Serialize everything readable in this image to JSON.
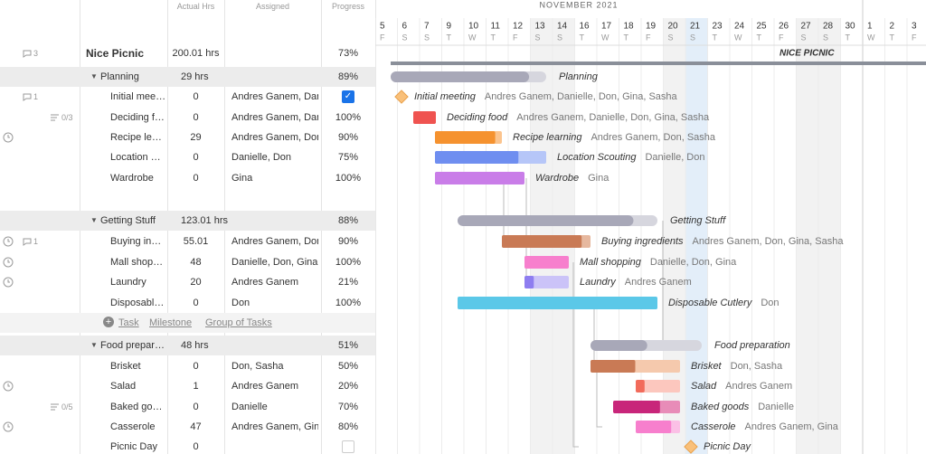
{
  "columns": {
    "actual_hrs": "Actual Hrs",
    "assigned": "Assigned",
    "progress": "Progress"
  },
  "timeline": {
    "month": "NOVEMBER 2021",
    "days": [
      {
        "day": "5",
        "weekday": "F"
      },
      {
        "day": "6",
        "weekday": "S"
      },
      {
        "day": "7",
        "weekday": "S"
      },
      {
        "day": "9",
        "weekday": "T"
      },
      {
        "day": "10",
        "weekday": "W"
      },
      {
        "day": "11",
        "weekday": "T"
      },
      {
        "day": "12",
        "weekday": "F"
      },
      {
        "day": "13",
        "weekday": "S"
      },
      {
        "day": "14",
        "weekday": "S"
      },
      {
        "day": "16",
        "weekday": "T"
      },
      {
        "day": "17",
        "weekday": "W"
      },
      {
        "day": "18",
        "weekday": "T"
      },
      {
        "day": "19",
        "weekday": "F"
      },
      {
        "day": "20",
        "weekday": "S"
      },
      {
        "day": "21",
        "weekday": "S"
      },
      {
        "day": "23",
        "weekday": "T"
      },
      {
        "day": "24",
        "weekday": "W"
      },
      {
        "day": "25",
        "weekday": "T"
      },
      {
        "day": "26",
        "weekday": "F"
      },
      {
        "day": "27",
        "weekday": "S"
      },
      {
        "day": "28",
        "weekday": "S"
      },
      {
        "day": "30",
        "weekday": "T"
      },
      {
        "day": "1",
        "weekday": "W"
      },
      {
        "day": "2",
        "weekday": "T"
      },
      {
        "day": "3",
        "weekday": "F"
      }
    ]
  },
  "project": {
    "name": "Nice Picnic",
    "hours": "200.01 hrs",
    "progress": "73%",
    "comments": "3",
    "bar_label": "NICE PICNIC"
  },
  "groups": [
    {
      "name": "Planning",
      "hours": "29 hrs",
      "progress": "89%",
      "tasks": [
        {
          "name": "Initial meeting",
          "hours": "0",
          "assigned": "Andres Ganem, Danielle, Don, Gina, Sasha",
          "done": true,
          "comments": "1"
        },
        {
          "name": "Deciding food",
          "hours": "0",
          "assigned": "Andres Ganem, Danielle, Don, Gina, Sasha",
          "progress": "100%",
          "checklist": "0/3"
        },
        {
          "name": "Recipe learning",
          "hours": "29",
          "assigned": "Andres Ganem, Don, Sasha",
          "progress": "90%",
          "timer": true
        },
        {
          "name": "Location Scouting",
          "hours": "0",
          "assigned": "Danielle, Don",
          "progress": "75%"
        },
        {
          "name": "Wardrobe",
          "hours": "0",
          "assigned": "Gina",
          "progress": "100%"
        }
      ]
    },
    {
      "name": "Getting Stuff",
      "hours": "123.01 hrs",
      "progress": "88%",
      "tasks": [
        {
          "name": "Buying ingredients",
          "hours": "55.01",
          "assigned": "Andres Ganem, Don, Gina, Sasha",
          "progress": "90%",
          "timer": true,
          "comments": "1"
        },
        {
          "name": "Mall shopping",
          "hours": "48",
          "assigned": "Danielle, Don, Gina",
          "progress": "100%",
          "timer": true
        },
        {
          "name": "Laundry",
          "hours": "20",
          "assigned": "Andres Ganem",
          "progress": "21%",
          "timer": true
        },
        {
          "name": "Disposable Cutlery",
          "hours": "0",
          "assigned": "Don",
          "progress": "100%"
        }
      ]
    },
    {
      "name": "Food preparation",
      "hours": "48 hrs",
      "progress": "51%",
      "tasks": [
        {
          "name": "Brisket",
          "hours": "0",
          "assigned": "Don, Sasha",
          "progress": "50%"
        },
        {
          "name": "Salad",
          "hours": "1",
          "assigned": "Andres Ganem",
          "progress": "20%",
          "timer": true
        },
        {
          "name": "Baked goods",
          "hours": "0",
          "assigned": "Danielle",
          "progress": "70%",
          "checklist": "0/5"
        },
        {
          "name": "Casserole",
          "hours": "47",
          "assigned": "Andres Ganem, Gina",
          "progress": "80%",
          "timer": true
        },
        {
          "name": "Picnic Day",
          "hours": "0",
          "done": false
        }
      ]
    }
  ],
  "add": {
    "task": "Task",
    "milestone": "Milestone",
    "group": "Group of Tasks"
  }
}
